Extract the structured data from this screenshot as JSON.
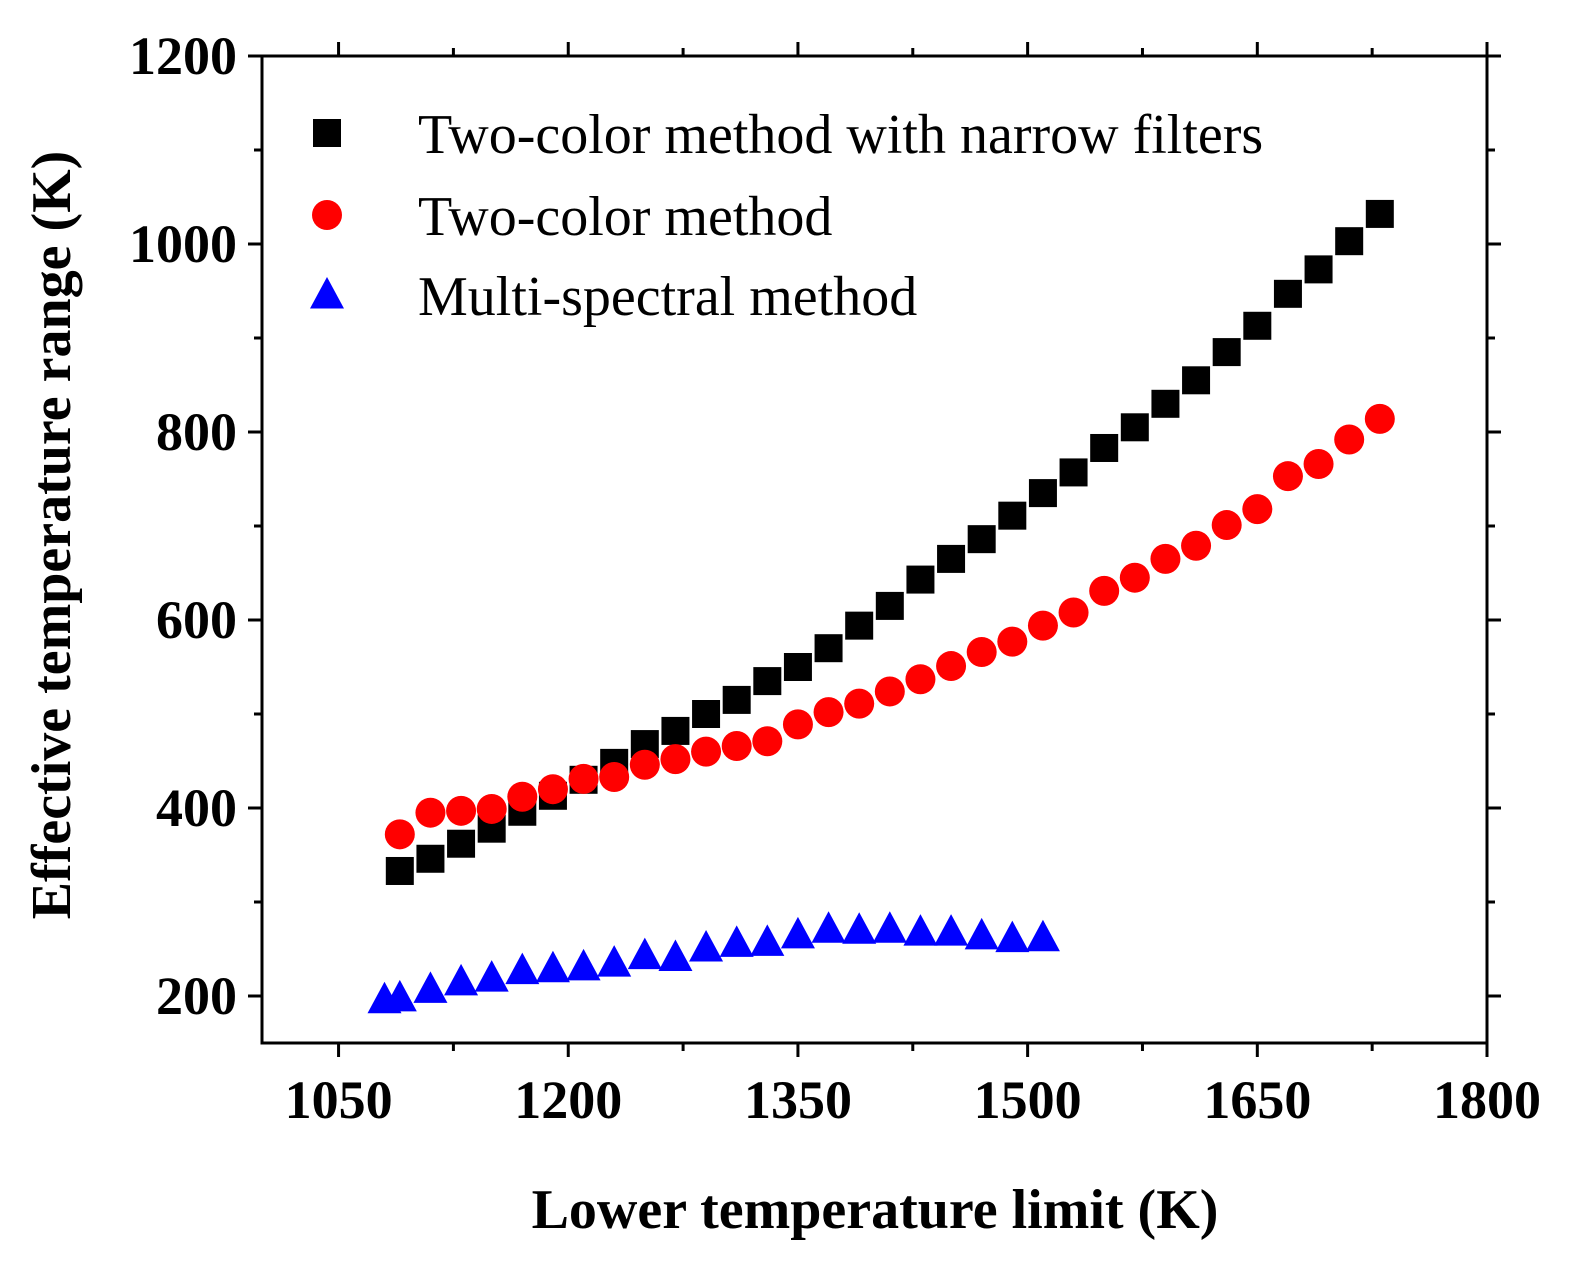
{
  "chart_data": {
    "type": "scatter",
    "title": "",
    "xlabel": "Lower temperature limit (K)",
    "ylabel": "Effective temperature range (K)",
    "xlim": [
      1000,
      1800
    ],
    "ylim": [
      150,
      1200
    ],
    "xticks": [
      1050,
      1200,
      1350,
      1500,
      1650,
      1800
    ],
    "yticks": [
      200,
      400,
      600,
      800,
      1000,
      1200
    ],
    "xtick_labels": [
      "1050",
      "1200",
      "1350",
      "1500",
      "1650",
      "1800"
    ],
    "ytick_labels": [
      "200",
      "400",
      "600",
      "800",
      "1000",
      "1200"
    ],
    "legend_position": "top-left",
    "grid": false,
    "series": [
      {
        "name": "Two-color method with narrow filters",
        "marker": "square",
        "color": "#000000",
        "x": [
          1090,
          1110,
          1130,
          1150,
          1170,
          1190,
          1210,
          1230,
          1250,
          1270,
          1290,
          1310,
          1330,
          1350,
          1370,
          1390,
          1410,
          1430,
          1450,
          1470,
          1490,
          1510,
          1530,
          1550,
          1570,
          1590,
          1610,
          1630,
          1650,
          1670,
          1690,
          1710,
          1730
        ],
        "y": [
          333,
          346,
          362,
          378,
          396,
          413,
          430,
          448,
          468,
          482,
          500,
          515,
          535,
          550,
          570,
          594,
          615,
          643,
          665,
          686,
          711,
          735,
          757,
          783,
          805,
          830,
          855,
          885,
          913,
          947,
          973,
          1003,
          1032
        ]
      },
      {
        "name": "Two-color method",
        "marker": "circle",
        "color": "#ff0000",
        "x": [
          1090,
          1110,
          1130,
          1150,
          1170,
          1190,
          1210,
          1230,
          1250,
          1270,
          1290,
          1310,
          1330,
          1350,
          1370,
          1390,
          1410,
          1430,
          1450,
          1470,
          1490,
          1510,
          1530,
          1550,
          1570,
          1590,
          1610,
          1630,
          1650,
          1670,
          1690,
          1710,
          1730
        ],
        "y": [
          372,
          395,
          397,
          399,
          412,
          420,
          431,
          433,
          446,
          452,
          460,
          466,
          471,
          489,
          502,
          511,
          524,
          537,
          551,
          566,
          577,
          594,
          608,
          631,
          645,
          665,
          679,
          701,
          718,
          753,
          766,
          792,
          814
        ]
      },
      {
        "name": "Multi-spectral method",
        "marker": "triangle",
        "color": "#0000ff",
        "x": [
          1080,
          1090,
          1110,
          1130,
          1150,
          1170,
          1190,
          1210,
          1230,
          1250,
          1270,
          1290,
          1310,
          1330,
          1350,
          1370,
          1390,
          1410,
          1430,
          1450,
          1470,
          1490,
          1510
        ],
        "y": [
          196,
          198,
          207,
          215,
          219,
          227,
          229,
          231,
          235,
          243,
          241,
          251,
          256,
          257,
          265,
          271,
          270,
          271,
          268,
          268,
          264,
          261,
          262
        ]
      }
    ]
  }
}
